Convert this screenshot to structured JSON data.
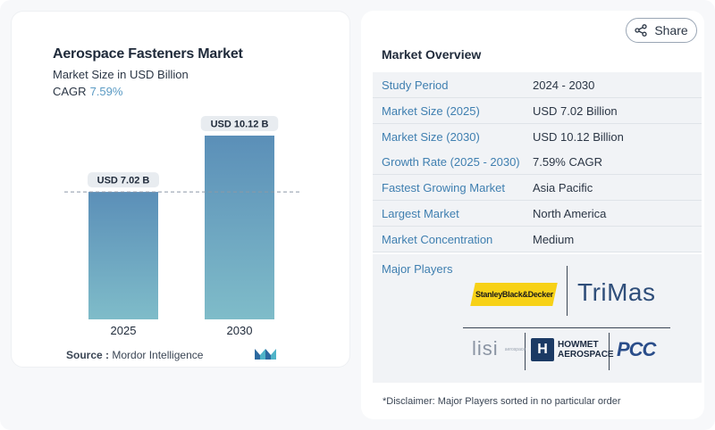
{
  "chart": {
    "title": "Aerospace Fasteners Market",
    "subtitle": "Market Size in USD Billion",
    "cagr_label": "CAGR",
    "cagr_value": "7.59%",
    "source_label": "Source :",
    "source_value": "Mordor Intelligence"
  },
  "chart_data": {
    "type": "bar",
    "categories": [
      "2025",
      "2030"
    ],
    "values": [
      7.02,
      10.12
    ],
    "data_labels": [
      "USD 7.02 B",
      "USD 10.12 B"
    ],
    "title": "Aerospace Fasteners Market",
    "subtitle": "Market Size in USD Billion",
    "xlabel": "",
    "ylabel": "",
    "ylim": [
      0,
      10.12
    ],
    "grid": false,
    "reference_line": "dashed line at 2025 value",
    "colors": {
      "bar_top": "#5b8fb8",
      "bar_bottom": "#7fbcc9",
      "label_bg": "#e8ecf0",
      "ref_line": "#8c98a6"
    }
  },
  "share": {
    "label": "Share",
    "icon": "share-icon"
  },
  "overview": {
    "title": "Market Overview",
    "rows": [
      {
        "label": "Study Period",
        "value": "2024 - 2030"
      },
      {
        "label": "Market Size (2025)",
        "value": "USD 7.02 Billion"
      },
      {
        "label": "Market Size (2030)",
        "value": "USD 10.12 Billion"
      },
      {
        "label": "Growth Rate (2025 - 2030)",
        "value": "7.59% CAGR"
      },
      {
        "label": "Fastest Growing Market",
        "value": "Asia Pacific"
      },
      {
        "label": "Largest Market",
        "value": "North America"
      },
      {
        "label": "Market Concentration",
        "value": "Medium"
      }
    ],
    "players_title": "Major Players",
    "players": [
      {
        "name": "StanleyBlack&Decker"
      },
      {
        "name": "TriMas"
      },
      {
        "name": "lisi",
        "tagline": "aerospace"
      },
      {
        "name": "HOWMET AEROSPACE",
        "line1": "HOWMET",
        "line2": "AEROSPACE"
      },
      {
        "name": "PCC"
      }
    ],
    "disclaimer": "*Disclaimer: Major Players sorted in no particular order"
  },
  "colors": {
    "accent": "#3f7fb0",
    "cagr": "#5b9bc4",
    "label_text": "#3f7fb0"
  }
}
